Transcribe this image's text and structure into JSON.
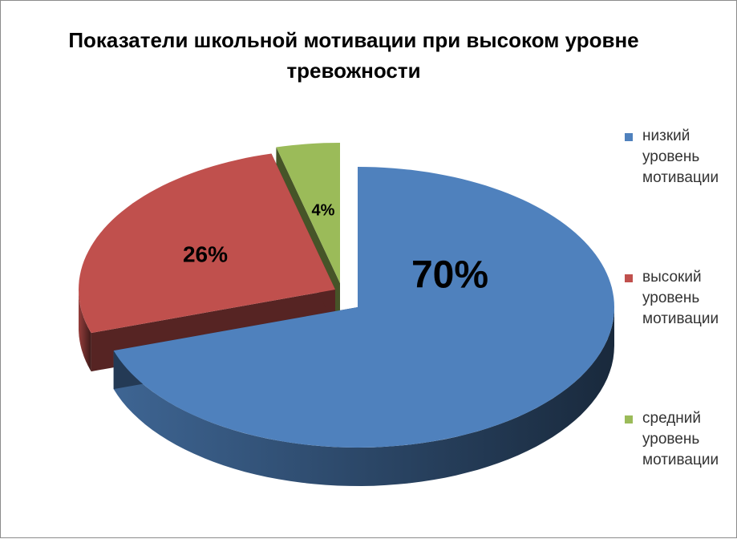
{
  "chart_data": {
    "type": "pie",
    "title_lines": [
      "Показатели школьной мотивации при высоком уровне",
      "тревожности"
    ],
    "categories": [
      "низкий уровень мотивации",
      "высокий уровень мотивации",
      "средний уровень мотивации"
    ],
    "values": [
      70,
      26,
      4
    ],
    "data_labels": [
      "70%",
      "26%",
      "4%"
    ],
    "legend_lines": [
      [
        "низкий",
        "уровень",
        "мотивации"
      ],
      [
        "высокий",
        "уровень",
        "мотивации"
      ],
      [
        "средний",
        "уровень",
        "мотивации"
      ]
    ],
    "colors": [
      "#4F81BD",
      "#C0504D",
      "#9BBB59"
    ],
    "legend_position": "right",
    "style": "3d-exploded"
  }
}
